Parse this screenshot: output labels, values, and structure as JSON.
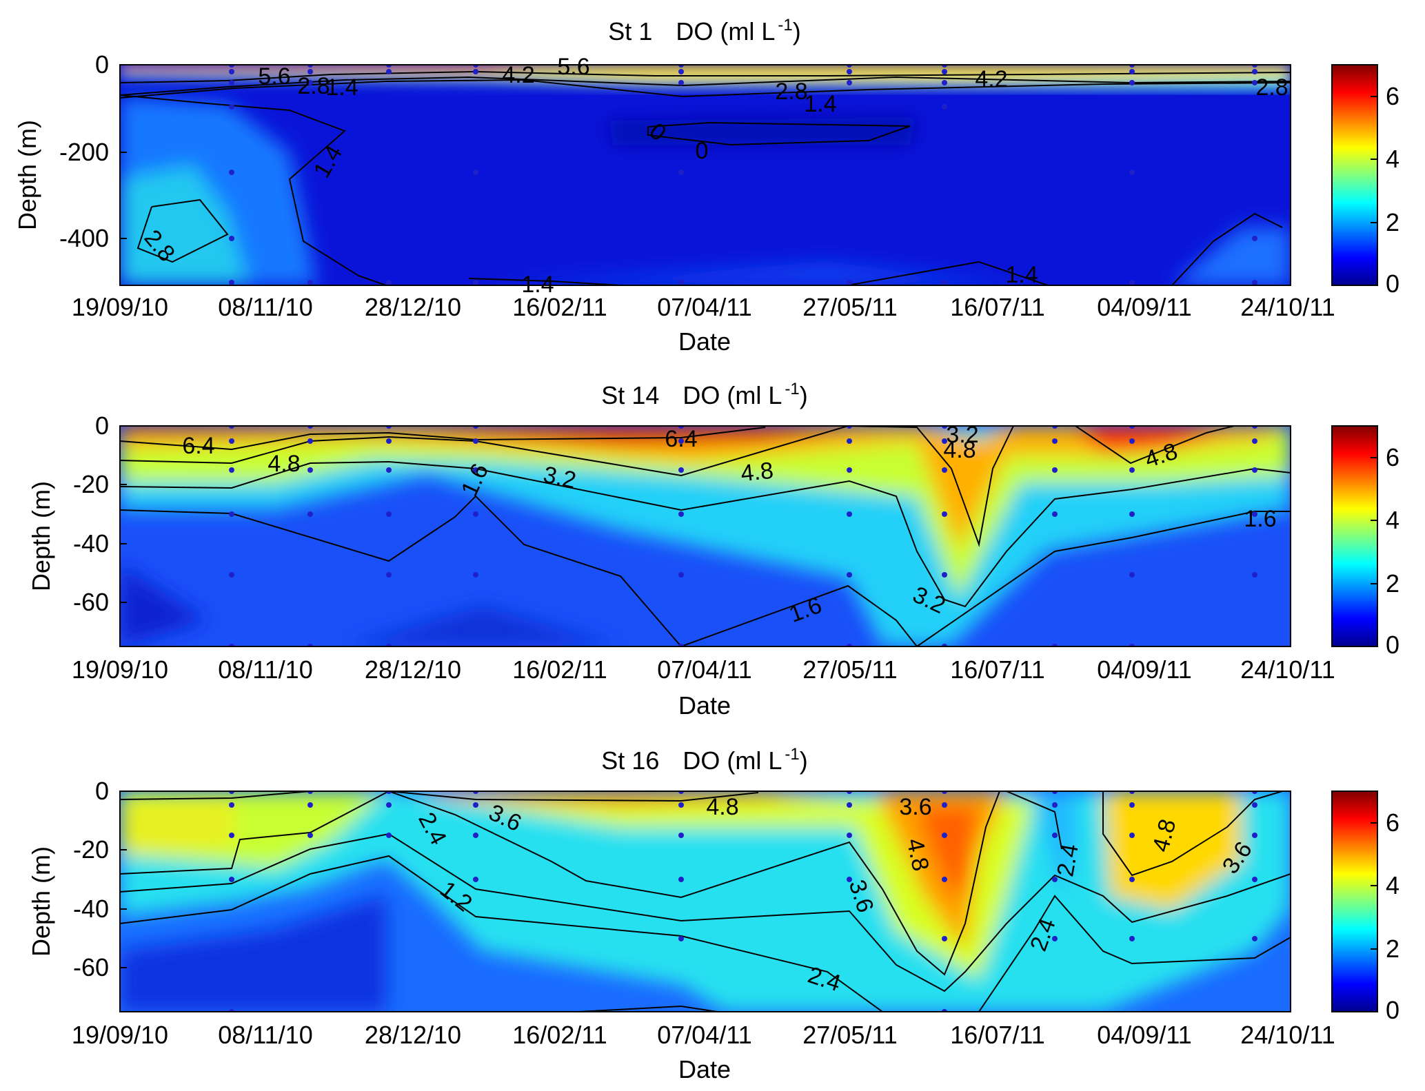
{
  "colors": {
    "jet": [
      "#00008f",
      "#0000ff",
      "#00ffff",
      "#ffff00",
      "#ff0000",
      "#800000"
    ],
    "marker": "#2020c8"
  },
  "chart_data": [
    {
      "type": "heatmap",
      "title_station": "St 1",
      "title_var": "DO (ml L",
      "title_sup": "-1",
      "title_close": ")",
      "xlabel": "Date",
      "ylabel": "Depth (m)",
      "x_ticks": [
        "19/09/10",
        "08/11/10",
        "28/12/10",
        "16/02/11",
        "07/04/11",
        "27/05/11",
        "16/07/11",
        "04/09/11",
        "24/10/11"
      ],
      "y_ticks": [
        "0",
        "-200",
        "-400"
      ],
      "y_tick_values": [
        0,
        -200,
        -400
      ],
      "ylim": [
        -500,
        10
      ],
      "colorbar": {
        "range": [
          0,
          7
        ],
        "ticks": [
          "0",
          "2",
          "4",
          "6"
        ]
      },
      "sample_dates": [
        "2010-10-28",
        "2010-11-28",
        "2010-12-28",
        "2011-01-30",
        "2011-04-07",
        "2011-05-30",
        "2011-07-09",
        "2011-09-04",
        "2011-10-21"
      ],
      "contour_labels": [
        "5.6",
        "2.8",
        "1.4",
        "4.2",
        "5.6",
        "4.2",
        "2.8",
        "1.4",
        "2.8",
        "0",
        "0",
        "1.4",
        "2.8",
        "1.4",
        "1.4"
      ]
    },
    {
      "type": "heatmap",
      "title_station": "St 14",
      "title_var": "DO (ml L",
      "title_sup": "-1",
      "title_close": ")",
      "xlabel": "Date",
      "ylabel": "Depth (m)",
      "x_ticks": [
        "19/09/10",
        "08/11/10",
        "28/12/10",
        "16/02/11",
        "07/04/11",
        "27/05/11",
        "16/07/11",
        "04/09/11",
        "24/10/11"
      ],
      "y_ticks": [
        "0",
        "-20",
        "-40",
        "-60"
      ],
      "y_tick_values": [
        0,
        -20,
        -40,
        -60
      ],
      "ylim": [
        -75,
        0
      ],
      "colorbar": {
        "range": [
          0,
          7
        ],
        "ticks": [
          "0",
          "2",
          "4",
          "6"
        ]
      },
      "sample_dates": [
        "2010-10-28",
        "2010-11-28",
        "2010-12-28",
        "2011-01-30",
        "2011-04-07",
        "2011-05-30",
        "2011-07-09",
        "2011-08-08",
        "2011-09-04",
        "2011-10-21"
      ],
      "contour_labels": [
        "6.4",
        "4.8",
        "1.6",
        "3.2",
        "6.4",
        "4.8",
        "3.2",
        "4.8",
        "4.8",
        "1.6",
        "1.6",
        "3.2"
      ]
    },
    {
      "type": "heatmap",
      "title_station": "St 16",
      "title_var": "DO (ml L",
      "title_sup": "-1",
      "title_close": ")",
      "xlabel": "Date",
      "ylabel": "Depth (m)",
      "x_ticks": [
        "19/09/10",
        "08/11/10",
        "28/12/10",
        "16/02/11",
        "07/04/11",
        "27/05/11",
        "16/07/11",
        "04/09/11",
        "24/10/11"
      ],
      "y_ticks": [
        "0",
        "-20",
        "-40",
        "-60"
      ],
      "y_tick_values": [
        0,
        -20,
        -40,
        -60
      ],
      "ylim": [
        -75,
        0
      ],
      "colorbar": {
        "range": [
          0,
          7
        ],
        "ticks": [
          "0",
          "2",
          "4",
          "6"
        ]
      },
      "sample_dates": [
        "2010-10-28",
        "2010-11-28",
        "2010-12-28",
        "2011-01-30",
        "2011-04-07",
        "2011-05-30",
        "2011-07-09",
        "2011-08-08",
        "2011-09-04",
        "2011-10-21"
      ],
      "contour_labels": [
        "3.6",
        "2.4",
        "4.8",
        "1.2",
        "3.6",
        "4.8",
        "3.6",
        "2.4",
        "2.4",
        "4.8",
        "3.6",
        "2.4"
      ]
    }
  ]
}
